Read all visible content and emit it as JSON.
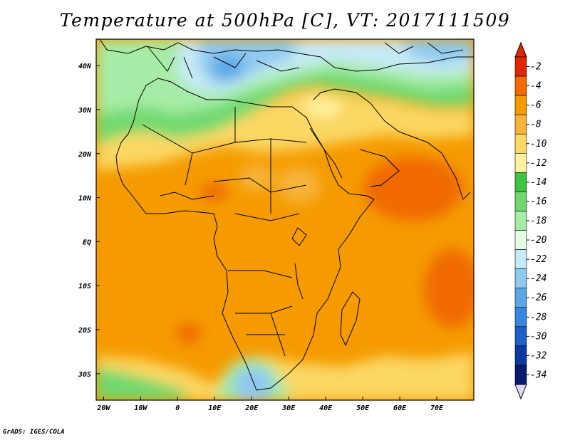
{
  "title": "Temperature at 500hPa [C], VT: 2017111509",
  "credit": "GrADS: IGES/COLA",
  "map": {
    "lon_range": [
      -22,
      80
    ],
    "lat_range": [
      -36,
      46
    ],
    "lat_ticks": [
      {
        "value": 40,
        "label": "40N"
      },
      {
        "value": 30,
        "label": "30N"
      },
      {
        "value": 20,
        "label": "20N"
      },
      {
        "value": 10,
        "label": "10N"
      },
      {
        "value": 0,
        "label": "EQ"
      },
      {
        "value": -10,
        "label": "10S"
      },
      {
        "value": -20,
        "label": "20S"
      },
      {
        "value": -30,
        "label": "30S"
      }
    ],
    "lon_ticks": [
      {
        "value": -20,
        "label": "20W"
      },
      {
        "value": -10,
        "label": "10W"
      },
      {
        "value": 0,
        "label": "0"
      },
      {
        "value": 10,
        "label": "10E"
      },
      {
        "value": 20,
        "label": "20E"
      },
      {
        "value": 30,
        "label": "30E"
      },
      {
        "value": 40,
        "label": "40E"
      },
      {
        "value": 50,
        "label": "50E"
      },
      {
        "value": 60,
        "label": "60E"
      },
      {
        "value": 70,
        "label": "70E"
      }
    ]
  },
  "colorbar": {
    "labels": [
      "-2",
      "-4",
      "-6",
      "-8",
      "-10",
      "-12",
      "-14",
      "-16",
      "-18",
      "-20",
      "-22",
      "-24",
      "-26",
      "-28",
      "-30",
      "-32",
      "-34"
    ],
    "colors": [
      "#e02800",
      "#f06a00",
      "#f59b00",
      "#f7b43a",
      "#fbd763",
      "#fff1a0",
      "#3fc43f",
      "#6fd96f",
      "#a6eca6",
      "#e6fce6",
      "#c6eaf7",
      "#8ec9ee",
      "#5aa7e6",
      "#3687e0",
      "#1e5fc7",
      "#0a3aa0",
      "#081a6e"
    ],
    "over_color": "#e02800",
    "under_color": "#dcd8f5"
  }
}
